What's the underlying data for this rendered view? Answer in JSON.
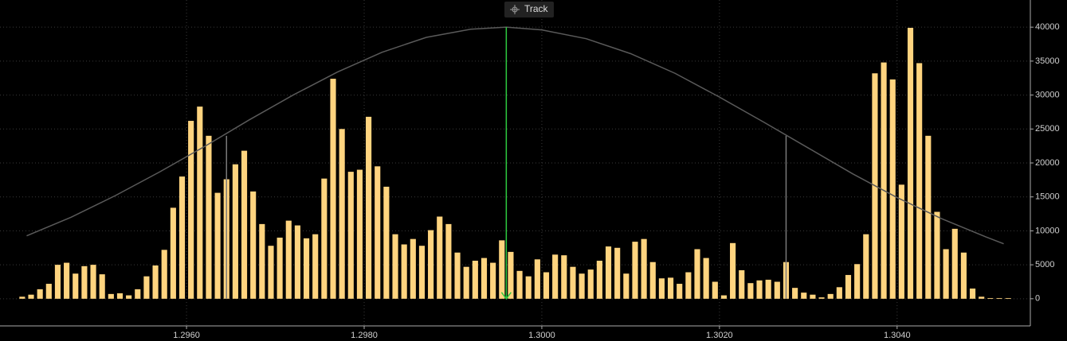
{
  "chart_data": {
    "type": "histogram",
    "track_label": "Track",
    "bins": [
      1.2941,
      1.2942,
      1.2943,
      1.2944,
      1.2945,
      1.2946,
      1.2947,
      1.2948,
      1.2949,
      1.295,
      1.2951,
      1.2952,
      1.2953,
      1.2954,
      1.2955,
      1.2956,
      1.2957,
      1.2958,
      1.2959,
      1.296,
      1.2961,
      1.2962,
      1.2963,
      1.2964,
      1.2965,
      1.2966,
      1.2967,
      1.2968,
      1.2969,
      1.297,
      1.2971,
      1.2972,
      1.2973,
      1.2974,
      1.2975,
      1.2976,
      1.2977,
      1.2978,
      1.2979,
      1.298,
      1.2981,
      1.2982,
      1.2983,
      1.2984,
      1.2985,
      1.2986,
      1.2987,
      1.2988,
      1.2989,
      1.299,
      1.2991,
      1.2992,
      1.2993,
      1.2994,
      1.2995,
      1.2996,
      1.2997,
      1.2998,
      1.2999,
      1.3,
      1.3001,
      1.3002,
      1.3003,
      1.3004,
      1.3005,
      1.3006,
      1.3007,
      1.3008,
      1.3009,
      1.301,
      1.3011,
      1.3012,
      1.3013,
      1.3014,
      1.3015,
      1.3016,
      1.3017,
      1.3018,
      1.3019,
      1.302,
      1.3021,
      1.3022,
      1.3023,
      1.3024,
      1.3025,
      1.3026,
      1.3027,
      1.3028,
      1.3029,
      1.303,
      1.3031,
      1.3032,
      1.3033,
      1.3034,
      1.3035,
      1.3036,
      1.3037,
      1.3038,
      1.3039,
      1.304,
      1.3041,
      1.3042,
      1.3043,
      1.3044,
      1.3045,
      1.3046,
      1.3047,
      1.3048,
      1.3049,
      1.305,
      1.3051,
      1.3052,
      1.3053
    ],
    "counts": [
      300,
      600,
      1400,
      2200,
      5000,
      5300,
      3700,
      4800,
      5000,
      3600,
      700,
      800,
      500,
      1400,
      3300,
      4900,
      7200,
      13400,
      18000,
      26200,
      28300,
      24000,
      15600,
      17600,
      19800,
      21800,
      15800,
      11000,
      7800,
      9000,
      11500,
      10800,
      8900,
      9500,
      17700,
      32400,
      25000,
      18700,
      19000,
      26800,
      19500,
      16500,
      9500,
      8000,
      8800,
      7800,
      10100,
      12100,
      11000,
      6800,
      4700,
      5600,
      6000,
      5300,
      8600,
      6900,
      4100,
      3300,
      5800,
      3900,
      6500,
      6400,
      4700,
      3700,
      4300,
      5600,
      7700,
      7500,
      3700,
      8400,
      8800,
      5400,
      3000,
      3100,
      2200,
      3900,
      7300,
      6000,
      2500,
      500,
      8200,
      4200,
      2300,
      2700,
      2800,
      2500,
      5400,
      1600,
      900,
      600,
      200,
      700,
      1700,
      3500,
      5100,
      9500,
      33200,
      34800,
      32300,
      16800,
      39900,
      34700,
      24000,
      12800,
      7300,
      10300,
      6800,
      1500,
      300,
      100,
      100,
      100
    ],
    "color": "#ffd47f",
    "curve": {
      "color": "#5a5a5a",
      "x": [
        1.2942,
        1.2947,
        1.2952,
        1.2957,
        1.2962,
        1.2967,
        1.2972,
        1.2977,
        1.2982,
        1.2987,
        1.2992,
        1.2996,
        1.3,
        1.3005,
        1.301,
        1.3015,
        1.302,
        1.3025,
        1.303,
        1.3035,
        1.304,
        1.3045,
        1.305,
        1.3052
      ],
      "values": [
        9260,
        12000,
        15200,
        18700,
        22400,
        26300,
        30000,
        33400,
        36300,
        38500,
        39700,
        40000,
        39600,
        38300,
        36100,
        33200,
        29700,
        26000,
        22200,
        18400,
        14900,
        11800,
        9100,
        8100
      ]
    },
    "markers": [
      {
        "x": 1.29645,
        "value": 24000,
        "color": "#7a7a7a"
      },
      {
        "x": 1.30275,
        "value": 24000,
        "color": "#7a7a7a"
      },
      {
        "x": 1.2996,
        "value": 40000,
        "color": "#2ecc40"
      }
    ],
    "xlim": [
      1.2939,
      1.3055
    ],
    "ylim": [
      -4000,
      44000
    ],
    "xticks": [
      {
        "value": 1.296,
        "label": "1.2960"
      },
      {
        "value": 1.298,
        "label": "1.2980"
      },
      {
        "value": 1.3,
        "label": "1.3000"
      },
      {
        "value": 1.302,
        "label": "1.3020"
      },
      {
        "value": 1.304,
        "label": "1.3040"
      }
    ],
    "yticks": [
      0,
      5000,
      10000,
      15000,
      20000,
      25000,
      30000,
      35000,
      40000
    ],
    "grid": true
  }
}
